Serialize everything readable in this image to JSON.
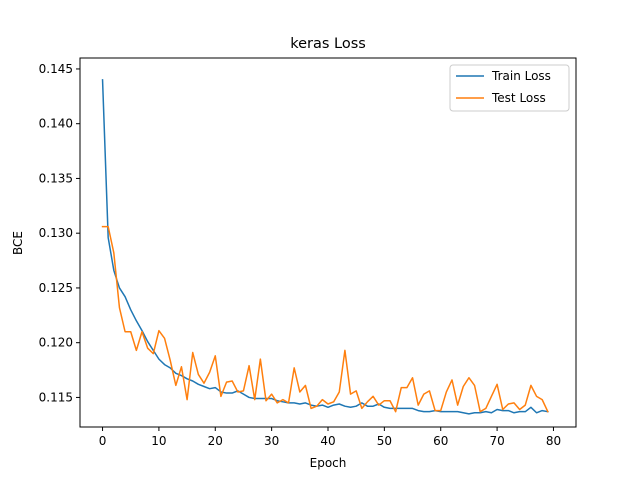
{
  "chart_data": {
    "type": "line",
    "title": "keras Loss",
    "xlabel": "Epoch",
    "ylabel": "BCE",
    "xlim": [
      -4,
      84
    ],
    "ylim": [
      0.1123,
      0.146
    ],
    "xticks": [
      0,
      10,
      20,
      30,
      40,
      50,
      60,
      70,
      80
    ],
    "yticks": [
      0.115,
      0.12,
      0.125,
      0.13,
      0.135,
      0.14,
      0.145
    ],
    "ytick_labels": [
      "0.115",
      "0.120",
      "0.125",
      "0.130",
      "0.135",
      "0.140",
      "0.145"
    ],
    "grid": false,
    "legend_position": "top-right",
    "series": [
      {
        "name": "Train Loss",
        "color": "#1f77b4",
        "values": [
          0.144,
          0.1296,
          0.1266,
          0.125,
          0.1242,
          0.123,
          0.122,
          0.1211,
          0.1201,
          0.1193,
          0.1185,
          0.118,
          0.1177,
          0.1172,
          0.117,
          0.1167,
          0.1165,
          0.1162,
          0.116,
          0.1158,
          0.1159,
          0.1155,
          0.1154,
          0.1154,
          0.1156,
          0.1153,
          0.115,
          0.1149,
          0.1149,
          0.1149,
          0.1149,
          0.1147,
          0.1146,
          0.1145,
          0.1145,
          0.1144,
          0.1145,
          0.1143,
          0.1142,
          0.1143,
          0.1141,
          0.1143,
          0.1144,
          0.1142,
          0.1141,
          0.1142,
          0.1145,
          0.1142,
          0.1142,
          0.1144,
          0.1141,
          0.114,
          0.114,
          0.114,
          0.114,
          0.114,
          0.1138,
          0.1137,
          0.1137,
          0.1138,
          0.1137,
          0.1137,
          0.1137,
          0.1137,
          0.1136,
          0.1135,
          0.1136,
          0.1136,
          0.1137,
          0.1136,
          0.1139,
          0.1138,
          0.1138,
          0.1136,
          0.1137,
          0.1137,
          0.1141,
          0.1136,
          0.1138,
          0.1137
        ]
      },
      {
        "name": "Test Loss",
        "color": "#ff7f0e",
        "values": [
          0.1306,
          0.1306,
          0.1282,
          0.1232,
          0.121,
          0.121,
          0.1193,
          0.121,
          0.1195,
          0.119,
          0.1211,
          0.1204,
          0.1184,
          0.1161,
          0.1178,
          0.1148,
          0.1191,
          0.1171,
          0.1163,
          0.1173,
          0.1188,
          0.1151,
          0.1164,
          0.1165,
          0.1155,
          0.1156,
          0.1179,
          0.1148,
          0.1185,
          0.1147,
          0.1153,
          0.1145,
          0.1148,
          0.1145,
          0.1177,
          0.1155,
          0.1161,
          0.114,
          0.1142,
          0.1148,
          0.1144,
          0.1146,
          0.1155,
          0.1193,
          0.1153,
          0.1156,
          0.114,
          0.1146,
          0.1151,
          0.1143,
          0.1147,
          0.1147,
          0.1137,
          0.1159,
          0.1159,
          0.1168,
          0.1143,
          0.1153,
          0.1156,
          0.1138,
          0.1138,
          0.1155,
          0.1166,
          0.1143,
          0.116,
          0.1168,
          0.1161,
          0.1137,
          0.114,
          0.1151,
          0.1162,
          0.1139,
          0.1144,
          0.1145,
          0.1139,
          0.1143,
          0.1161,
          0.1151,
          0.1148,
          0.1137
        ]
      }
    ]
  }
}
